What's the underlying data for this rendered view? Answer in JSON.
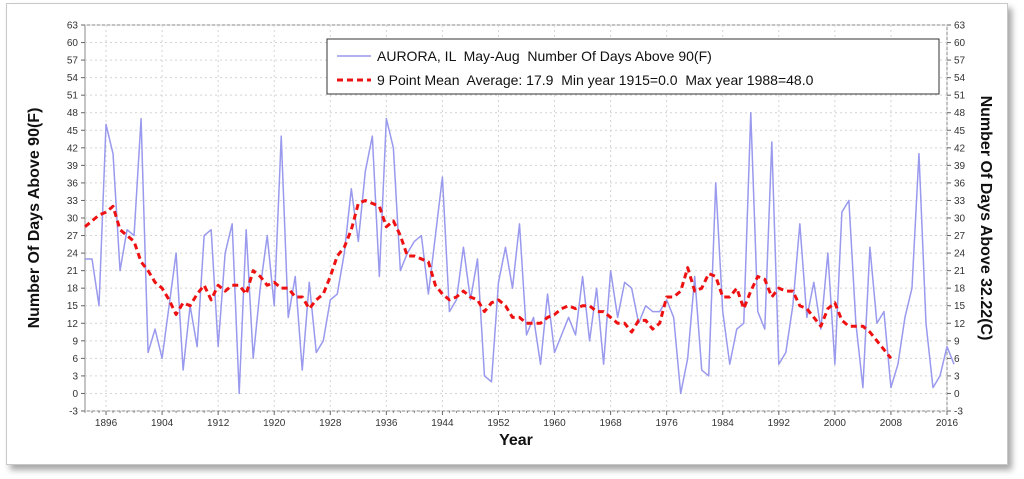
{
  "chart_data": {
    "type": "line",
    "xlabel": "Year",
    "ylabel": "Number Of Days Above 90(F)",
    "ylabel_right": "Number Of Days Above 32.22(C)",
    "xlim": [
      1893,
      2016
    ],
    "ylim": [
      -3,
      63
    ],
    "x_ticks": [
      1896,
      1904,
      1912,
      1920,
      1928,
      1936,
      1944,
      1952,
      1960,
      1968,
      1976,
      1984,
      1992,
      2000,
      2008,
      2016
    ],
    "y_ticks": [
      -3,
      0,
      3,
      6,
      9,
      12,
      15,
      18,
      21,
      24,
      27,
      30,
      33,
      36,
      39,
      42,
      45,
      48,
      51,
      54,
      57,
      60,
      63
    ],
    "grid": true,
    "legend_position": "top-right",
    "colors": {
      "raw": "#9999ee",
      "mean": "#ee1111"
    },
    "series": [
      {
        "name": "AURORA, IL  May-Aug  Number Of Days Above 90(F)",
        "style": "solid",
        "x_start": 1893,
        "values": [
          23,
          23,
          15,
          46,
          41,
          21,
          28,
          27,
          47,
          7,
          11,
          6,
          15,
          24,
          4,
          15,
          8,
          27,
          28,
          8,
          24,
          29,
          0,
          28,
          6,
          18,
          27,
          15,
          44,
          13,
          20,
          4,
          19,
          7,
          9,
          16,
          17,
          24,
          35,
          26,
          38,
          44,
          20,
          47,
          42,
          21,
          24,
          26,
          27,
          17,
          27,
          37,
          14,
          16,
          25,
          16,
          23,
          3,
          2,
          19,
          25,
          18,
          29,
          10,
          13,
          5,
          17,
          7,
          10,
          13,
          10,
          20,
          9,
          18,
          5,
          21,
          13,
          19,
          18,
          12,
          15,
          14,
          14,
          16,
          13,
          0,
          6,
          20,
          4,
          3,
          36,
          14,
          5,
          11,
          12,
          48,
          14,
          11,
          43,
          5,
          7,
          15,
          29,
          13,
          19,
          11,
          24,
          5,
          31,
          33,
          12,
          1,
          25,
          12,
          14,
          1,
          5,
          13,
          18,
          41,
          12,
          1,
          3,
          8,
          5
        ]
      },
      {
        "name": "9 Point Mean  Average: 17.9  Min year 1915=0.0  Max year 1988=48.0",
        "style": "dashed",
        "x_start": 1893,
        "values": [
          28.5,
          29.5,
          30.5,
          31,
          32,
          28,
          27,
          26,
          22.5,
          21,
          19,
          18,
          16,
          13.5,
          15.5,
          15,
          17,
          18.5,
          16,
          18.5,
          17.5,
          18.5,
          18.5,
          17,
          21,
          20,
          18.5,
          19,
          18,
          18,
          16.5,
          16.5,
          14.5,
          16,
          17,
          20,
          23.5,
          25,
          28,
          32.5,
          33,
          32.5,
          32,
          28.5,
          29.5,
          27,
          23.5,
          23.5,
          23,
          22.5,
          18.5,
          17,
          16,
          16.5,
          17.5,
          16.5,
          16,
          14,
          15.5,
          16,
          15,
          13,
          13,
          12,
          12,
          12,
          13,
          13.5,
          14.5,
          15,
          14.5,
          15,
          15,
          14,
          14,
          13,
          12,
          12,
          10.5,
          12.5,
          12.5,
          11,
          12,
          16.5,
          16.5,
          17.5,
          21.5,
          17.5,
          18,
          20.5,
          20,
          16.5,
          16.5,
          18,
          14.5,
          17.5,
          20,
          19.5,
          16.5,
          18,
          17.5,
          17.5,
          15,
          14.5,
          13,
          11.5,
          14.5,
          15.5,
          12.5,
          11.5,
          11.5,
          11.5,
          10.5,
          9,
          7.5,
          6
        ]
      }
    ]
  }
}
